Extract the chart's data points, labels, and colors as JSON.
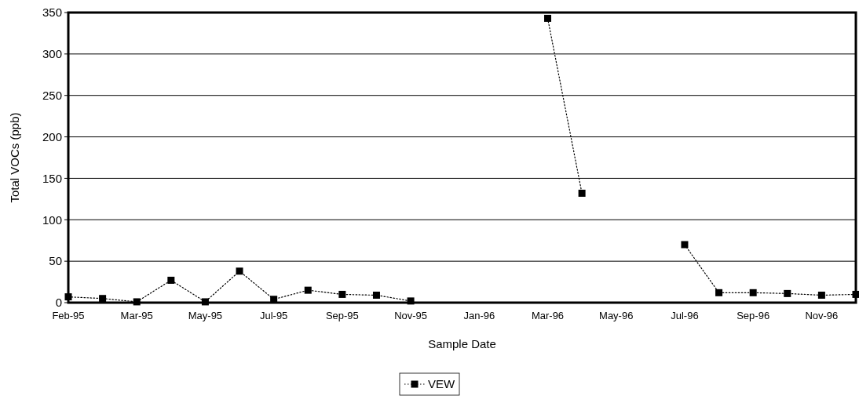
{
  "chart_data": {
    "type": "line",
    "xlabel": "Sample Date",
    "ylabel": "Total VOCs (ppb)",
    "categories": [
      "Feb-95",
      null,
      "Mar-95",
      null,
      "May-95",
      null,
      "Jul-95",
      null,
      "Sep-95",
      null,
      "Nov-95",
      null,
      "Jan-96",
      null,
      "Mar-96",
      null,
      "May-96",
      null,
      "Jul-96",
      null,
      "Sep-96",
      null,
      "Nov-96",
      null
    ],
    "series": [
      {
        "name": "VEW",
        "color": "#000000",
        "values": [
          7,
          5,
          1,
          27,
          1,
          38,
          4,
          15,
          10,
          9,
          2,
          null,
          null,
          null,
          343,
          132,
          null,
          null,
          70,
          12,
          12,
          11,
          9,
          10
        ]
      }
    ],
    "ylim": [
      0,
      350
    ],
    "yticks": [
      0,
      50,
      100,
      150,
      200,
      250,
      300,
      350
    ],
    "grid": "y",
    "legend": "bottom",
    "marker": "square",
    "line_style": "dotted"
  }
}
